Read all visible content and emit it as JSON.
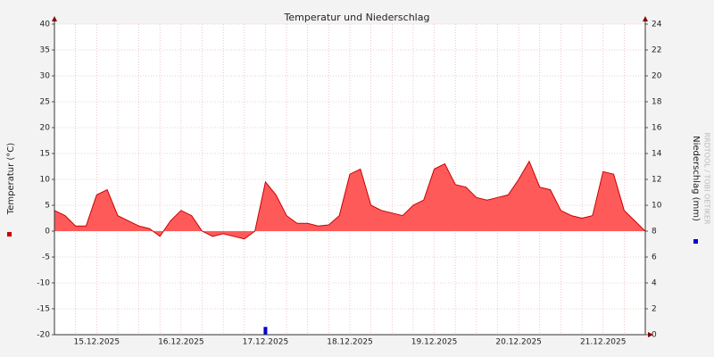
{
  "chart_data": {
    "type": "area",
    "title": "Temperatur und Niederschlag",
    "watermark": "RRDTOOL / TOBI OETIKER",
    "categories": [
      null,
      null,
      null,
      null,
      "15.12.2025",
      null,
      null,
      null,
      null,
      null,
      null,
      null,
      "16.12.2025",
      null,
      null,
      null,
      null,
      null,
      null,
      null,
      "17.12.2025",
      null,
      null,
      null,
      null,
      null,
      null,
      null,
      "18.12.2025",
      null,
      null,
      null,
      null,
      null,
      null,
      null,
      "19.12.2025",
      null,
      null,
      null,
      null,
      null,
      null,
      null,
      "20.12.2025",
      null,
      null,
      null,
      null,
      null,
      null,
      null,
      "21.12.2025",
      null,
      null,
      null,
      null
    ],
    "series": [
      {
        "name": "Temperatur (°C)",
        "type": "area",
        "color": "#ff5a5a",
        "line_color": "#cc0000",
        "values": [
          4,
          3,
          1,
          1,
          7,
          8,
          3,
          2,
          1,
          0.5,
          -1,
          2,
          4,
          3,
          0,
          -1,
          -0.5,
          -1,
          -1.5,
          0,
          9.5,
          7,
          3,
          1.5,
          1.5,
          1,
          1.2,
          3,
          11,
          12,
          5,
          4,
          3.5,
          3,
          5,
          6,
          12,
          13,
          9,
          8.5,
          6.5,
          6,
          6.5,
          7,
          10,
          13.5,
          8.5,
          8,
          4,
          3,
          2.5,
          3,
          11.5,
          11,
          4,
          2,
          0
        ]
      },
      {
        "name": "Niederschlag (mm)",
        "type": "bar",
        "axis": "y2",
        "color": "#0000cc",
        "values": [
          0,
          0,
          0,
          0,
          0,
          0,
          0,
          0,
          0,
          0,
          0,
          0,
          0,
          0,
          0,
          0,
          0,
          0,
          0,
          0,
          0.6,
          0,
          0,
          0,
          0,
          0,
          0,
          0,
          0,
          0,
          0,
          0,
          0,
          0,
          0,
          0,
          0,
          0,
          0,
          0,
          0,
          0,
          0,
          0,
          0,
          0,
          0,
          0,
          0,
          0,
          0,
          0,
          0,
          0,
          0,
          0,
          0
        ]
      }
    ],
    "ylim": [
      -20,
      40
    ],
    "yticks": [
      -20,
      -15,
      -10,
      -5,
      0,
      5,
      10,
      15,
      20,
      25,
      30,
      35,
      40
    ],
    "y2lim": [
      0,
      24
    ],
    "y2ticks": [
      0,
      2,
      4,
      6,
      8,
      10,
      12,
      14,
      16,
      18,
      20,
      22,
      24
    ],
    "grid": true
  }
}
